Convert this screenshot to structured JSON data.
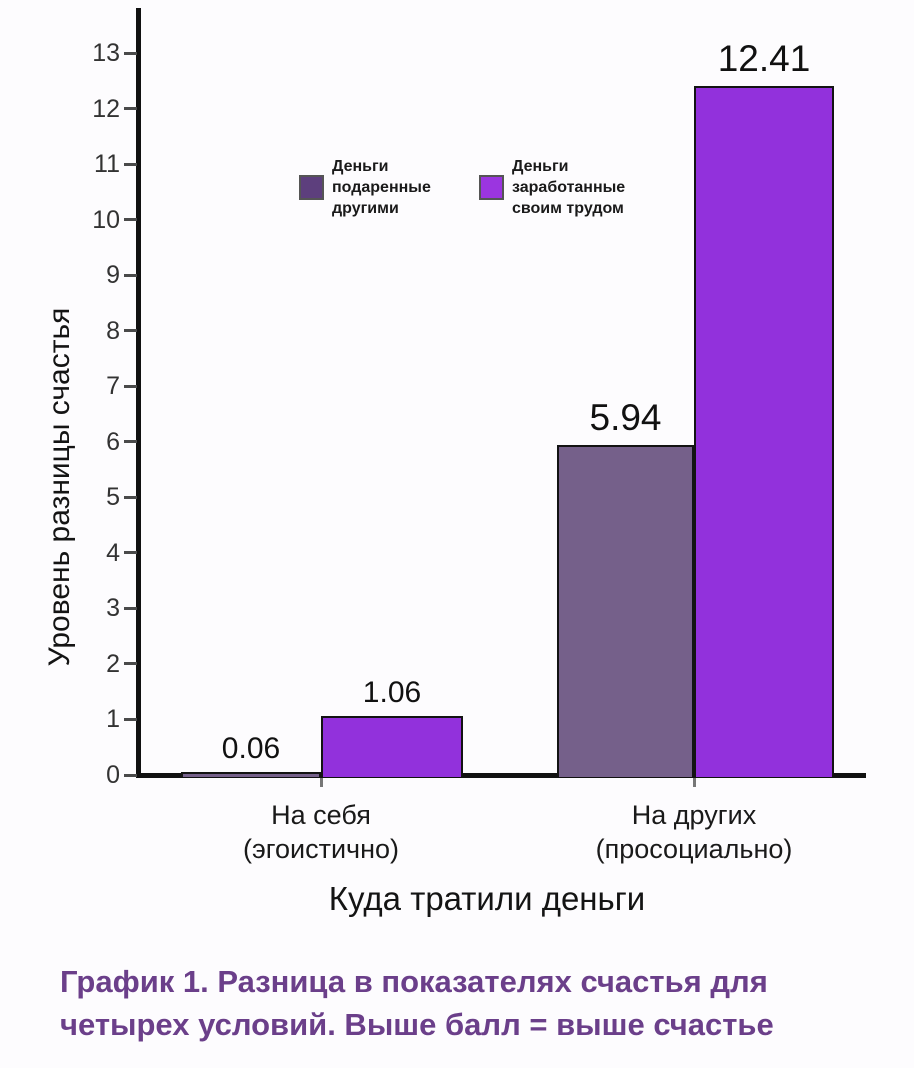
{
  "chart_data": {
    "type": "bar",
    "title": "",
    "xlabel": "Куда тратили деньги",
    "ylabel": "Уровень разницы счастья",
    "categories": [
      "На себя (эгоистично)",
      "На других (просоциально)"
    ],
    "category_label_lines": [
      [
        "На себя",
        "(эгоистично)"
      ],
      [
        "На других",
        "(просоциально)"
      ]
    ],
    "series": [
      {
        "name": "Деньги подаренные другими",
        "name_lines": [
          "Деньги",
          "подаренные",
          "другими"
        ],
        "values": [
          0.06,
          5.94
        ],
        "value_labels": [
          "0.06",
          "5.94"
        ],
        "bar_color": "#75608A",
        "legend_color": "#5D3F7D"
      },
      {
        "name": "Деньги заработанные своим трудом",
        "name_lines": [
          "Деньги",
          "заработанные",
          "своим трудом"
        ],
        "values": [
          1.06,
          12.41
        ],
        "value_labels": [
          "1.06",
          "12.41"
        ],
        "bar_color": "#9231DC",
        "legend_color": "#9B35E0"
      }
    ],
    "ylim": [
      0,
      13
    ],
    "yticks": [
      0,
      1,
      2,
      3,
      4,
      5,
      6,
      7,
      8,
      9,
      10,
      11,
      12,
      13
    ],
    "grid": false,
    "legend_position": "inside-upper-left",
    "bar_border_color": "#131313",
    "axis_color": "#111111"
  },
  "caption": {
    "full": "График 1. Разница в показателях счастья для четырех условий. Выше балл = выше счастье",
    "lines": [
      "График 1. Разница в показателях счастья для",
      "четырех условий. Выше балл = выше счастье"
    ],
    "color": "#6B3F8A"
  }
}
